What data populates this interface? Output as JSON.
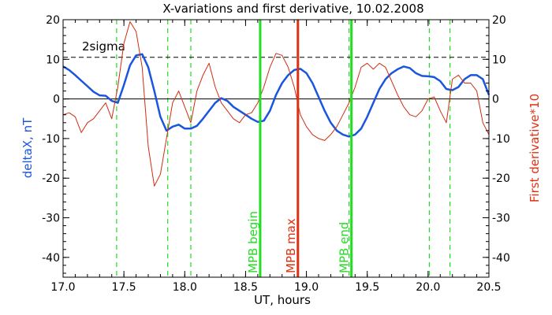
{
  "chart_data": {
    "type": "line",
    "title": "X-variations and first derivative, 10.02.2008",
    "xlabel": "UT, hours",
    "ylabel_left": "deltaX, nT",
    "ylabel_right": "First derivative*10",
    "xlim": [
      17.0,
      20.5
    ],
    "ylim": [
      -45,
      20
    ],
    "x_ticks": [
      17.0,
      17.5,
      18.0,
      18.5,
      19.0,
      19.5,
      20.0,
      20.5
    ],
    "x_tick_labels": [
      "17.0",
      "17.5",
      "18.0",
      "18.5",
      "19.0",
      "19.5",
      "20.0",
      "20.5"
    ],
    "y_ticks": [
      20,
      10,
      0,
      -10,
      -20,
      -30,
      -40
    ],
    "y_tick_labels": [
      "20",
      "10",
      "0",
      "-10",
      "-20",
      "-30",
      "-40"
    ],
    "sigma_label": "2sigma",
    "sigma_level": 10.5,
    "zero_level": 0,
    "colors": {
      "deltaX": "#1a55e0",
      "derivative": "#d02c10",
      "mpb_green": "#22dd22",
      "mpb_red": "#e03010",
      "left_axis_label": "#1a55e0",
      "right_axis_label": "#e03010"
    },
    "dashed_verticals": [
      17.44,
      17.86,
      18.05,
      18.62,
      19.35,
      20.01,
      20.18
    ],
    "markers": [
      {
        "x": 18.62,
        "label": "MPB begin",
        "color": "#22dd22"
      },
      {
        "x": 18.93,
        "label": "MPB max",
        "color": "#e03010"
      },
      {
        "x": 19.37,
        "label": "MPB end",
        "color": "#22dd22"
      }
    ],
    "series": [
      {
        "name": "deltaX",
        "axis": "left",
        "color": "#1a55e0",
        "x": [
          17.0,
          17.05,
          17.1,
          17.15,
          17.2,
          17.25,
          17.3,
          17.35,
          17.4,
          17.45,
          17.5,
          17.55,
          17.6,
          17.65,
          17.7,
          17.75,
          17.8,
          17.85,
          17.9,
          17.95,
          18.0,
          18.05,
          18.1,
          18.15,
          18.2,
          18.25,
          18.3,
          18.35,
          18.4,
          18.45,
          18.5,
          18.55,
          18.6,
          18.65,
          18.7,
          18.75,
          18.8,
          18.85,
          18.9,
          18.95,
          19.0,
          19.05,
          19.1,
          19.15,
          19.2,
          19.25,
          19.3,
          19.35,
          19.4,
          19.45,
          19.5,
          19.55,
          19.6,
          19.65,
          19.7,
          19.75,
          19.8,
          19.85,
          19.9,
          19.95,
          20.0,
          20.05,
          20.1,
          20.15,
          20.2,
          20.25,
          20.3,
          20.35,
          20.4,
          20.45,
          20.5
        ],
        "values": [
          8.2,
          7.3,
          6.0,
          4.6,
          3.2,
          1.8,
          0.9,
          0.8,
          -0.5,
          -1.0,
          3.5,
          8.5,
          11.0,
          11.3,
          8.0,
          2.0,
          -4.5,
          -8.0,
          -7.0,
          -6.5,
          -7.5,
          -7.5,
          -6.8,
          -5.0,
          -3.0,
          -1.0,
          0.2,
          -0.5,
          -2.0,
          -3.0,
          -4.0,
          -5.0,
          -5.8,
          -5.5,
          -3.0,
          1.0,
          4.0,
          6.0,
          7.3,
          7.6,
          6.5,
          4.0,
          0.5,
          -3.0,
          -6.0,
          -8.0,
          -9.0,
          -9.5,
          -9.0,
          -7.5,
          -4.5,
          -1.0,
          2.5,
          5.0,
          6.5,
          7.5,
          8.2,
          7.8,
          6.5,
          5.8,
          5.7,
          5.5,
          4.5,
          2.5,
          2.2,
          3.0,
          5.0,
          6.0,
          6.0,
          5.0,
          1.0
        ]
      },
      {
        "name": "First derivative*10",
        "axis": "right",
        "color": "#d02c10",
        "x": [
          17.0,
          17.05,
          17.1,
          17.15,
          17.2,
          17.25,
          17.3,
          17.35,
          17.4,
          17.45,
          17.5,
          17.55,
          17.6,
          17.65,
          17.7,
          17.75,
          17.8,
          17.85,
          17.9,
          17.95,
          18.0,
          18.05,
          18.1,
          18.15,
          18.2,
          18.25,
          18.3,
          18.35,
          18.4,
          18.45,
          18.5,
          18.55,
          18.6,
          18.65,
          18.7,
          18.75,
          18.8,
          18.85,
          18.9,
          18.95,
          19.0,
          19.05,
          19.1,
          19.15,
          19.2,
          19.25,
          19.3,
          19.35,
          19.4,
          19.45,
          19.5,
          19.55,
          19.6,
          19.65,
          19.7,
          19.75,
          19.8,
          19.85,
          19.9,
          19.95,
          20.0,
          20.05,
          20.1,
          20.15,
          20.2,
          20.25,
          20.3,
          20.35,
          20.4,
          20.45,
          20.5
        ],
        "values": [
          -4.0,
          -3.5,
          -4.5,
          -8.5,
          -6.0,
          -5.0,
          -3.0,
          -1.0,
          -5.0,
          3.0,
          14.0,
          19.5,
          17.0,
          8.0,
          -12.0,
          -22.0,
          -19.0,
          -10.0,
          -1.0,
          2.0,
          -2.0,
          -6.0,
          2.0,
          6.0,
          9.0,
          3.0,
          -1.0,
          -3.0,
          -5.0,
          -6.0,
          -4.0,
          -3.5,
          -1.0,
          3.0,
          8.0,
          11.5,
          11.0,
          8.0,
          3.0,
          -4.0,
          -7.0,
          -9.0,
          -10.0,
          -10.5,
          -9.0,
          -7.0,
          -4.0,
          -1.0,
          3.0,
          8.0,
          9.0,
          7.5,
          9.0,
          8.0,
          4.5,
          1.0,
          -2.0,
          -4.0,
          -4.5,
          -3.0,
          0.0,
          0.5,
          -3.0,
          -6.0,
          5.0,
          6.0,
          4.0,
          4.0,
          2.0,
          -6.0,
          -9.0
        ]
      }
    ]
  }
}
